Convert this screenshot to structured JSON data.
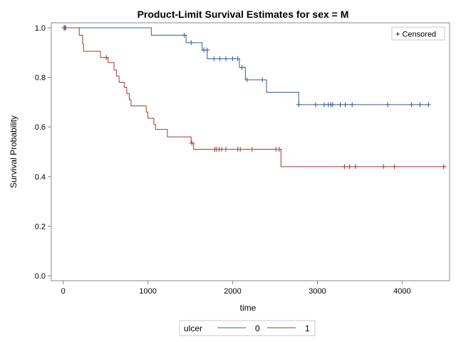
{
  "chart_data": {
    "type": "line",
    "subtype": "step",
    "title": "Product-Limit Survival Estimates for sex = M",
    "xlabel": "time",
    "ylabel": "Survival Probability",
    "xlim": [
      -140,
      4560
    ],
    "ylim": [
      -0.02,
      1.02
    ],
    "xticks": [
      "0",
      "1000",
      "2000",
      "3000",
      "4000"
    ],
    "yticks": [
      "0.0",
      "0.2",
      "0.4",
      "0.6",
      "0.8",
      "1.0"
    ],
    "xtick_values": [
      0,
      1000,
      2000,
      3000,
      4000
    ],
    "ytick_values": [
      0.0,
      0.2,
      0.4,
      0.6,
      0.8,
      1.0
    ],
    "censor_legend": "+ Censored",
    "legend_title": "ulcer",
    "legend_position": "bottom",
    "grid": false,
    "series": [
      {
        "name": "0",
        "color": "#3b5a9a",
        "steps": [
          [
            0,
            1.0
          ],
          [
            1040,
            0.97
          ],
          [
            1450,
            0.94
          ],
          [
            1640,
            0.91
          ],
          [
            1700,
            0.875
          ],
          [
            2080,
            0.84
          ],
          [
            2150,
            0.79
          ],
          [
            2400,
            0.74
          ],
          [
            2780,
            0.69
          ],
          [
            4320,
            0.69
          ]
        ],
        "censored": [
          [
            10,
            1.0
          ],
          [
            30,
            1.0
          ],
          [
            1430,
            0.97
          ],
          [
            1510,
            0.94
          ],
          [
            1660,
            0.91
          ],
          [
            1700,
            0.91
          ],
          [
            1780,
            0.875
          ],
          [
            1850,
            0.875
          ],
          [
            1920,
            0.875
          ],
          [
            2000,
            0.875
          ],
          [
            2060,
            0.875
          ],
          [
            2110,
            0.84
          ],
          [
            2170,
            0.79
          ],
          [
            2350,
            0.79
          ],
          [
            2780,
            0.69
          ],
          [
            2980,
            0.69
          ],
          [
            3080,
            0.69
          ],
          [
            3130,
            0.69
          ],
          [
            3160,
            0.69
          ],
          [
            3180,
            0.69
          ],
          [
            3270,
            0.69
          ],
          [
            3330,
            0.69
          ],
          [
            3410,
            0.69
          ],
          [
            3830,
            0.69
          ],
          [
            4110,
            0.69
          ],
          [
            4210,
            0.69
          ],
          [
            4310,
            0.69
          ]
        ]
      },
      {
        "name": "1",
        "color": "#a23a30",
        "steps": [
          [
            0,
            1.0
          ],
          [
            190,
            0.97
          ],
          [
            230,
            0.935
          ],
          [
            240,
            0.905
          ],
          [
            440,
            0.88
          ],
          [
            530,
            0.86
          ],
          [
            600,
            0.83
          ],
          [
            630,
            0.805
          ],
          [
            660,
            0.78
          ],
          [
            720,
            0.76
          ],
          [
            750,
            0.735
          ],
          [
            780,
            0.71
          ],
          [
            800,
            0.685
          ],
          [
            980,
            0.66
          ],
          [
            1000,
            0.635
          ],
          [
            1070,
            0.61
          ],
          [
            1090,
            0.59
          ],
          [
            1230,
            0.56
          ],
          [
            1510,
            0.535
          ],
          [
            1540,
            0.51
          ],
          [
            2570,
            0.44
          ],
          [
            4520,
            0.44
          ]
        ],
        "censored": [
          [
            20,
            1.0
          ],
          [
            510,
            0.88
          ],
          [
            1520,
            0.535
          ],
          [
            1790,
            0.51
          ],
          [
            1810,
            0.51
          ],
          [
            1840,
            0.51
          ],
          [
            1870,
            0.51
          ],
          [
            1920,
            0.51
          ],
          [
            2060,
            0.51
          ],
          [
            2090,
            0.51
          ],
          [
            2230,
            0.51
          ],
          [
            2510,
            0.51
          ],
          [
            2550,
            0.51
          ],
          [
            3320,
            0.44
          ],
          [
            3380,
            0.44
          ],
          [
            3450,
            0.44
          ],
          [
            3780,
            0.44
          ],
          [
            3910,
            0.44
          ],
          [
            4490,
            0.44
          ]
        ]
      }
    ]
  }
}
